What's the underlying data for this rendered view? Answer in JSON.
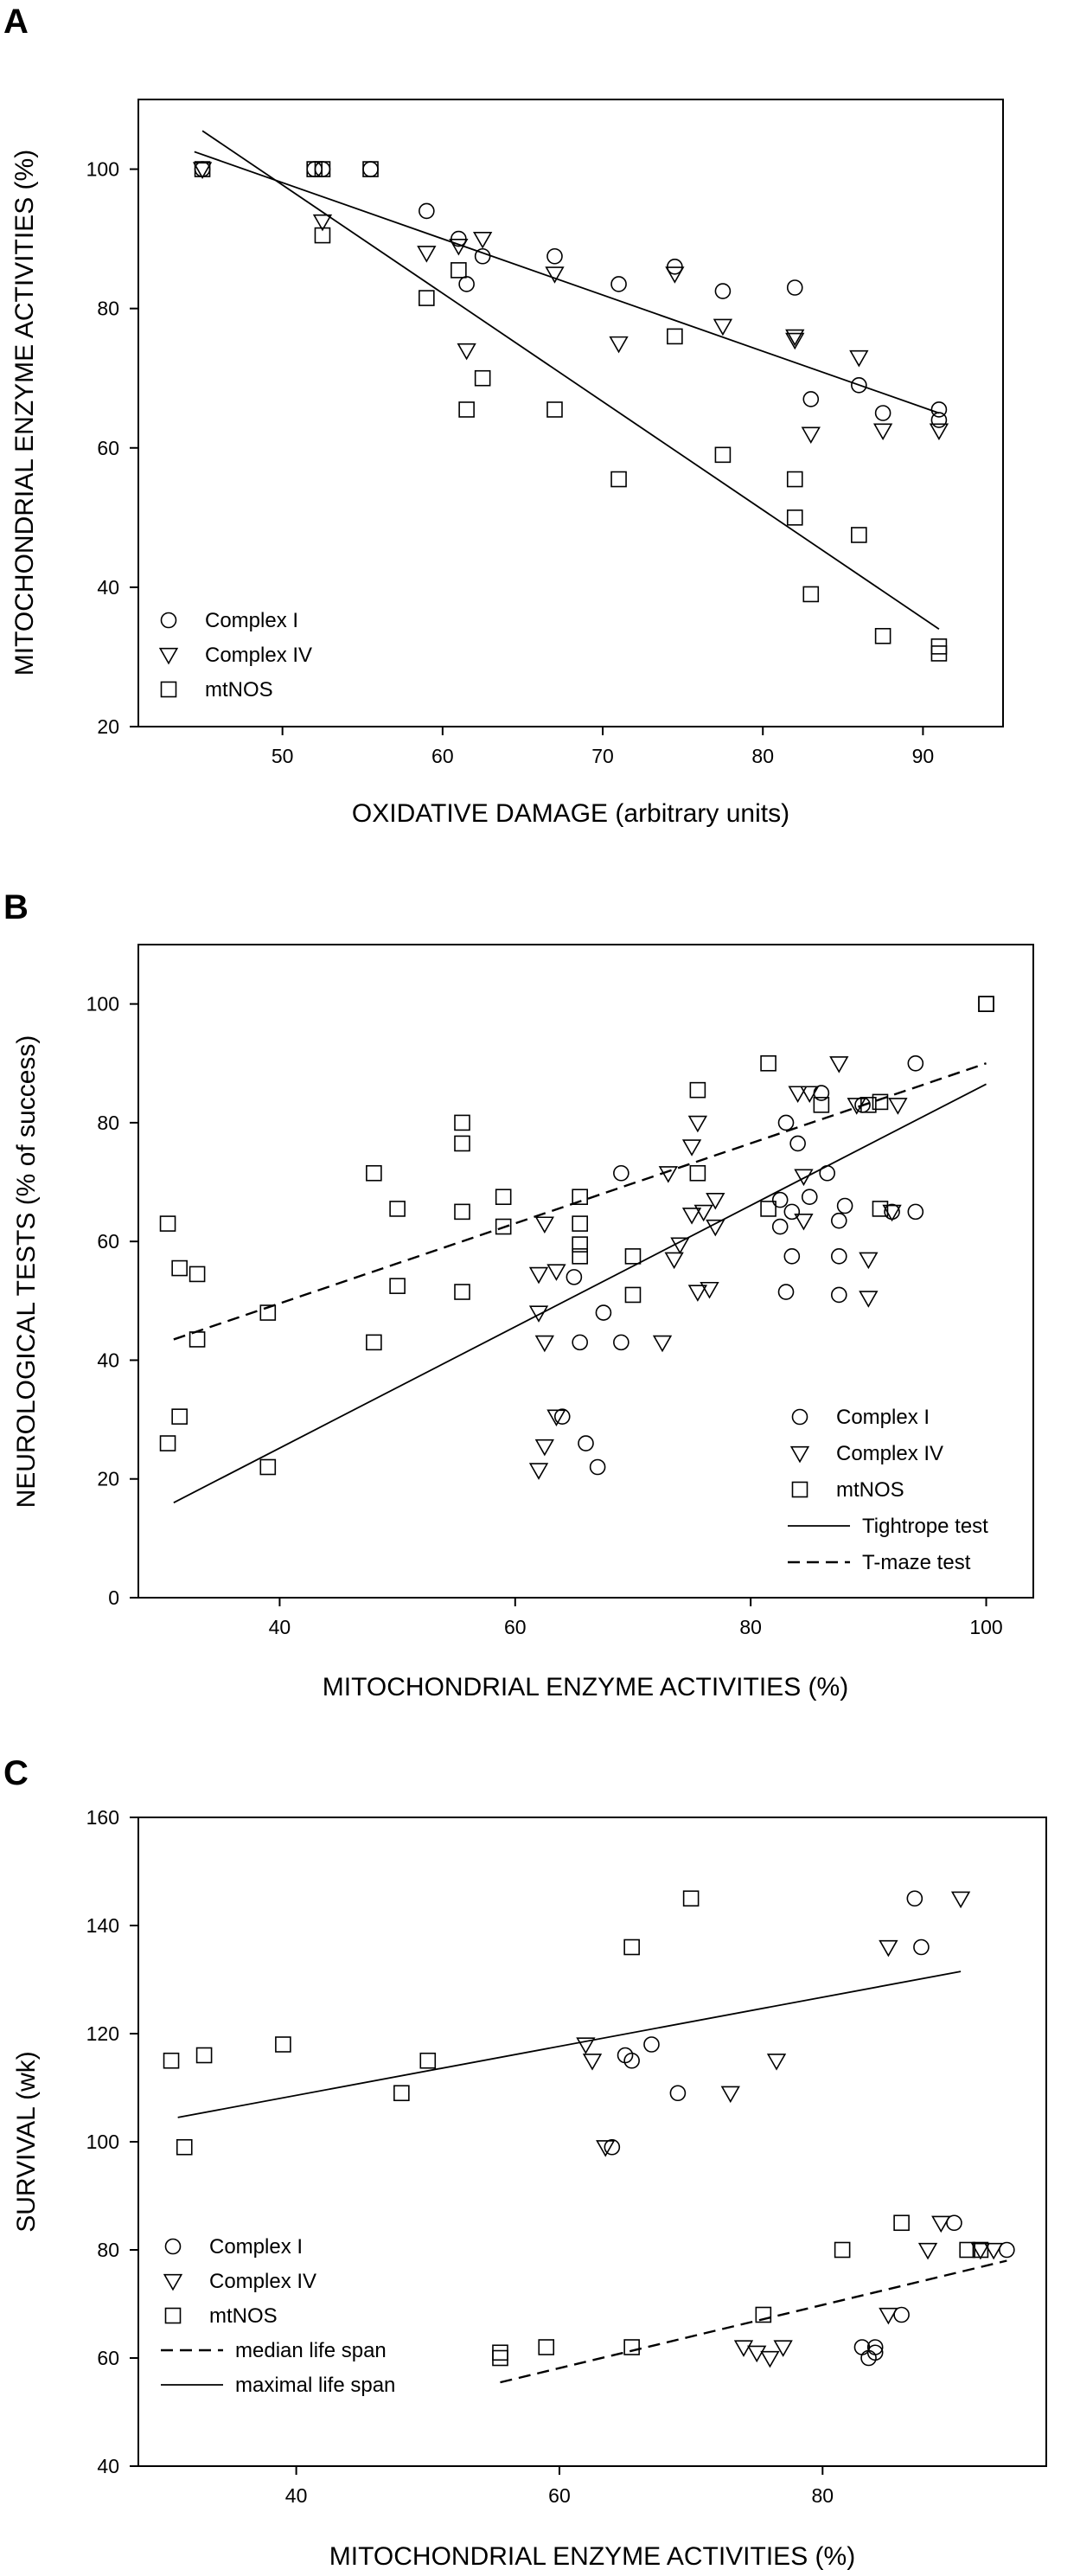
{
  "chart_data": [
    {
      "panel": "A",
      "type": "scatter",
      "title": "",
      "xlabel": "OXIDATIVE DAMAGE (arbitrary units)",
      "ylabel": "MITOCHONDRIAL ENZYME ACTIVITIES (%)",
      "xlim": [
        41,
        95
      ],
      "ylim": [
        20,
        110
      ],
      "xticks": [
        50,
        60,
        70,
        80,
        90
      ],
      "yticks": [
        20,
        40,
        60,
        80,
        100
      ],
      "legend_position": "bottom-left",
      "series": [
        {
          "name": "Complex I",
          "marker": "circle",
          "points": [
            [
              45,
              100
            ],
            [
              52,
              100
            ],
            [
              52.5,
              100
            ],
            [
              55.5,
              100
            ],
            [
              59,
              94
            ],
            [
              61,
              90
            ],
            [
              61.5,
              83.5
            ],
            [
              62.5,
              87.5
            ],
            [
              67,
              87.5
            ],
            [
              71,
              83.5
            ],
            [
              74.5,
              86
            ],
            [
              77.5,
              82.5
            ],
            [
              82,
              83
            ],
            [
              83,
              67
            ],
            [
              86,
              69
            ],
            [
              87.5,
              65
            ],
            [
              91,
              65.5
            ],
            [
              91,
              64
            ]
          ]
        },
        {
          "name": "Complex IV",
          "marker": "triangle-down",
          "points": [
            [
              45,
              100
            ],
            [
              52.5,
              92.5
            ],
            [
              59,
              88
            ],
            [
              61,
              89
            ],
            [
              61.5,
              74
            ],
            [
              62.5,
              90
            ],
            [
              67,
              85
            ],
            [
              71,
              75
            ],
            [
              74.5,
              85
            ],
            [
              77.5,
              77.5
            ],
            [
              82,
              76
            ],
            [
              82,
              75.5
            ],
            [
              83,
              62
            ],
            [
              86,
              73
            ],
            [
              87.5,
              62.5
            ],
            [
              91,
              62.5
            ]
          ]
        },
        {
          "name": "mtNOS",
          "marker": "square",
          "points": [
            [
              45,
              100
            ],
            [
              52,
              100
            ],
            [
              52.5,
              100
            ],
            [
              52.5,
              90.5
            ],
            [
              55.5,
              100
            ],
            [
              59,
              81.5
            ],
            [
              61,
              85.5
            ],
            [
              61.5,
              65.5
            ],
            [
              62.5,
              70
            ],
            [
              67,
              65.5
            ],
            [
              71,
              55.5
            ],
            [
              74.5,
              76
            ],
            [
              77.5,
              59
            ],
            [
              82,
              55.5
            ],
            [
              82,
              50
            ],
            [
              83,
              39
            ],
            [
              86,
              47.5
            ],
            [
              87.5,
              33
            ],
            [
              91,
              31.5
            ],
            [
              91,
              30.5
            ]
          ]
        }
      ],
      "fit_lines": [
        {
          "name": "Complex I / Complex IV fit",
          "style": "solid",
          "x": [
            44.5,
            91
          ],
          "y": [
            102.5,
            65
          ]
        },
        {
          "name": "mtNOS fit",
          "style": "solid",
          "x": [
            45,
            91
          ],
          "y": [
            105.5,
            34
          ]
        }
      ]
    },
    {
      "panel": "B",
      "type": "scatter",
      "title": "",
      "xlabel": "MITOCHONDRIAL ENZYME ACTIVITIES (%)",
      "ylabel": "NEUROLOGICAL TESTS (% of success)",
      "xlim": [
        28,
        104
      ],
      "ylim": [
        0,
        110
      ],
      "xticks": [
        40,
        60,
        80,
        100
      ],
      "yticks": [
        0,
        20,
        40,
        60,
        80,
        100
      ],
      "legend_position": "bottom-right",
      "series": [
        {
          "name": "Complex I",
          "marker": "circle",
          "points": [
            [
              64,
              30.5
            ],
            [
              65,
              54
            ],
            [
              65.5,
              43
            ],
            [
              66,
              26
            ],
            [
              67,
              22
            ],
            [
              67.5,
              48
            ],
            [
              69,
              71.5
            ],
            [
              69,
              43
            ],
            [
              82.5,
              62.5
            ],
            [
              82.5,
              67
            ],
            [
              83,
              51.5
            ],
            [
              83,
              80
            ],
            [
              83.5,
              57.5
            ],
            [
              83.5,
              65
            ],
            [
              84,
              76.5
            ],
            [
              85,
              67.5
            ],
            [
              86,
              85
            ],
            [
              86.5,
              71.5
            ],
            [
              87.5,
              51
            ],
            [
              87.5,
              57.5
            ],
            [
              87.5,
              63.5
            ],
            [
              88,
              66
            ],
            [
              89.5,
              83
            ],
            [
              92,
              65
            ],
            [
              94,
              65
            ],
            [
              94,
              90
            ]
          ]
        },
        {
          "name": "Complex IV",
          "marker": "triangle-down",
          "points": [
            [
              62,
              21.5
            ],
            [
              62,
              48
            ],
            [
              62,
              54.5
            ],
            [
              62.5,
              25.5
            ],
            [
              62.5,
              43
            ],
            [
              62.5,
              63
            ],
            [
              63.5,
              55
            ],
            [
              63.5,
              30.5
            ],
            [
              72.5,
              43
            ],
            [
              73,
              71.5
            ],
            [
              73.5,
              57
            ],
            [
              74,
              59.5
            ],
            [
              75,
              76
            ],
            [
              75,
              64.5
            ],
            [
              75.5,
              51.5
            ],
            [
              75.5,
              80
            ],
            [
              76,
              65
            ],
            [
              76.5,
              52
            ],
            [
              77,
              62.5
            ],
            [
              77,
              67
            ],
            [
              84,
              85
            ],
            [
              84.5,
              63.5
            ],
            [
              84.5,
              71
            ],
            [
              85,
              85
            ],
            [
              87.5,
              90
            ],
            [
              89,
              83
            ],
            [
              90,
              57
            ],
            [
              90,
              50.5
            ],
            [
              92,
              65
            ],
            [
              92.5,
              83
            ]
          ]
        },
        {
          "name": "mtNOS",
          "marker": "square",
          "points": [
            [
              30.5,
              63
            ],
            [
              30.5,
              26
            ],
            [
              31.5,
              55.5
            ],
            [
              31.5,
              30.5
            ],
            [
              33,
              54.5
            ],
            [
              33,
              43.5
            ],
            [
              39,
              48
            ],
            [
              39,
              22
            ],
            [
              48,
              71.5
            ],
            [
              48,
              43
            ],
            [
              50,
              65.5
            ],
            [
              50,
              52.5
            ],
            [
              55.5,
              80
            ],
            [
              55.5,
              76.5
            ],
            [
              55.5,
              65
            ],
            [
              55.5,
              51.5
            ],
            [
              59,
              67.5
            ],
            [
              59,
              62.5
            ],
            [
              65.5,
              67.5
            ],
            [
              65.5,
              63
            ],
            [
              65.5,
              59.5
            ],
            [
              65.5,
              57.5
            ],
            [
              70,
              57.5
            ],
            [
              70,
              51
            ],
            [
              75.5,
              85.5
            ],
            [
              75.5,
              71.5
            ],
            [
              81.5,
              90
            ],
            [
              81.5,
              65.5
            ],
            [
              86,
              83
            ],
            [
              90,
              83
            ],
            [
              91,
              65.5
            ],
            [
              91,
              83.5
            ],
            [
              100,
              100
            ],
            [
              100,
              100
            ]
          ]
        }
      ],
      "fit_lines": [
        {
          "name": "Tightrope test",
          "style": "solid",
          "x": [
            31,
            100
          ],
          "y": [
            16,
            86.5
          ]
        },
        {
          "name": "T-maze test",
          "style": "dashed",
          "x": [
            31,
            100
          ],
          "y": [
            43.5,
            90
          ]
        }
      ]
    },
    {
      "panel": "C",
      "type": "scatter",
      "title": "",
      "xlabel": "MITOCHONDRIAL ENZYME ACTIVITIES (%)",
      "ylabel": "SURVIVAL (wk)",
      "xlim": [
        28,
        97
      ],
      "ylim": [
        40,
        160
      ],
      "xticks": [
        40,
        60,
        80
      ],
      "yticks": [
        40,
        60,
        80,
        100,
        120,
        140,
        160
      ],
      "legend_position": "bottom-left",
      "series": [
        {
          "name": "Complex I",
          "marker": "circle",
          "points": [
            [
              64,
              99
            ],
            [
              65,
              116
            ],
            [
              65.5,
              115
            ],
            [
              67,
              118
            ],
            [
              69,
              109
            ],
            [
              83,
              62
            ],
            [
              83.5,
              60
            ],
            [
              84,
              61
            ],
            [
              84,
              62
            ],
            [
              86,
              68
            ],
            [
              87,
              145
            ],
            [
              87.5,
              136
            ],
            [
              90,
              85
            ],
            [
              94,
              80
            ]
          ]
        },
        {
          "name": "Complex IV",
          "marker": "triangle-down",
          "points": [
            [
              62,
              118
            ],
            [
              62.5,
              115
            ],
            [
              63.5,
              99
            ],
            [
              73,
              109
            ],
            [
              74,
              62
            ],
            [
              75,
              61
            ],
            [
              76,
              60
            ],
            [
              76.5,
              115
            ],
            [
              77,
              62
            ],
            [
              85,
              68
            ],
            [
              85,
              136
            ],
            [
              88,
              80
            ],
            [
              89,
              85
            ],
            [
              92,
              80
            ],
            [
              93,
              80
            ],
            [
              90.5,
              145
            ]
          ]
        },
        {
          "name": "mtNOS",
          "marker": "square",
          "points": [
            [
              30.5,
              115
            ],
            [
              31.5,
              99
            ],
            [
              33,
              116
            ],
            [
              39,
              118
            ],
            [
              48,
              109
            ],
            [
              50,
              115
            ],
            [
              55.5,
              60
            ],
            [
              55.5,
              61
            ],
            [
              59,
              62
            ],
            [
              65.5,
              62
            ],
            [
              65.5,
              136
            ],
            [
              70,
              145
            ],
            [
              75.5,
              68
            ],
            [
              81.5,
              80
            ],
            [
              86,
              85
            ],
            [
              91,
              80
            ],
            [
              92,
              80
            ]
          ]
        }
      ],
      "fit_lines": [
        {
          "name": "median life span",
          "style": "dashed",
          "x": [
            55.5,
            94
          ],
          "y": [
            55.5,
            78
          ]
        },
        {
          "name": "maximal life span",
          "style": "solid",
          "x": [
            31,
            90.5
          ],
          "y": [
            104.5,
            131.5
          ]
        }
      ]
    }
  ]
}
